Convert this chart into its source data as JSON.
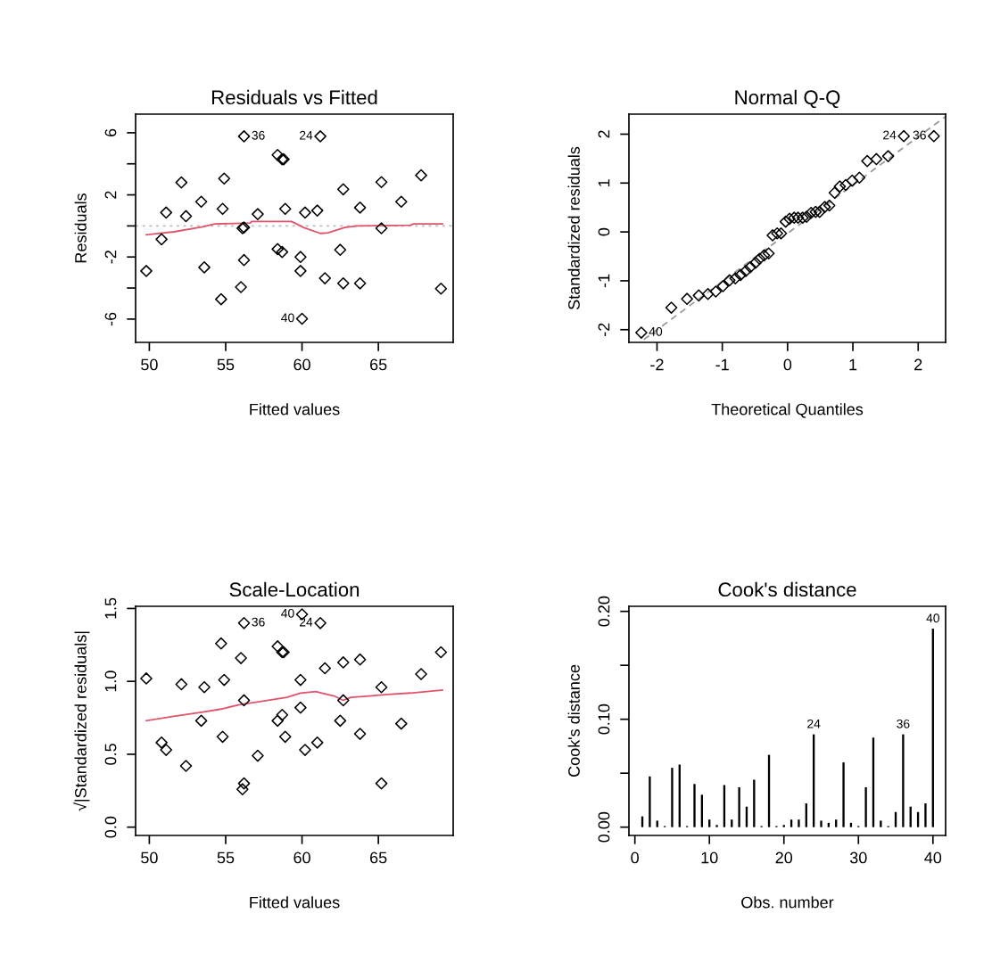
{
  "chart_data": [
    {
      "type": "scatter",
      "title": "Residuals vs Fitted",
      "xlabel": "Fitted values",
      "ylabel": "Residuals",
      "grid": false,
      "xlim": [
        49.1,
        69.9
      ],
      "ylim": [
        -7.5,
        7.2
      ],
      "xticks": [
        50,
        55,
        60,
        65
      ],
      "yticks": [
        -6,
        {
          "value": -4,
          "label": null
        },
        -2,
        {
          "value": 0,
          "label": null
        },
        2,
        {
          "value": 4,
          "label": null
        },
        6
      ],
      "ref_lines": [
        {
          "axis": "y",
          "value": 0,
          "color": "#bebebe",
          "line_style": "dotted"
        }
      ],
      "series": [
        {
          "type": "scatter",
          "color": "#000000",
          "marker": "diamond",
          "x": [
            49.8,
            50.8,
            51.1,
            52.1,
            52.4,
            53.4,
            53.6,
            54.7,
            54.8,
            54.9,
            56.0,
            56.1,
            56.2,
            56.2,
            56.2,
            57.1,
            58.4,
            58.7,
            58.8,
            58.4,
            58.7,
            58.9,
            59.9,
            59.9,
            60.0,
            60.2,
            61.0,
            61.2,
            61.5,
            62.5,
            62.7,
            62.7,
            63.8,
            63.8,
            65.2,
            65.2,
            66.5,
            67.8,
            69.1
          ],
          "values": [
            -2.9,
            -0.86,
            0.86,
            2.8,
            0.63,
            1.56,
            -2.67,
            -4.72,
            1.1,
            3.05,
            -3.94,
            -0.15,
            -0.1,
            -2.2,
            5.77,
            0.76,
            4.57,
            4.29,
            4.29,
            -1.49,
            -1.68,
            1.1,
            -2.0,
            -2.9,
            -5.98,
            0.86,
            0.99,
            5.77,
            -3.37,
            -1.54,
            2.36,
            -3.7,
            1.18,
            -3.7,
            2.82,
            -0.15,
            1.56,
            3.26,
            -4.04
          ]
        },
        {
          "type": "line",
          "color": "#df536b",
          "x": [
            49.8,
            51.6,
            53.5,
            54.3,
            56.6,
            56.7,
            59.3,
            59.7,
            60.1,
            61.2,
            61.7,
            62.8,
            63.6,
            67.1,
            67.3,
            69.2
          ],
          "values": [
            -0.57,
            -0.38,
            -0.06,
            0.13,
            0.19,
            0.29,
            0.29,
            0.1,
            -0.1,
            -0.48,
            -0.44,
            -0.1,
            0.0,
            0.04,
            0.13,
            0.13
          ]
        }
      ],
      "annotations": [
        {
          "text": "36",
          "x": 56.2,
          "y": 5.77
        },
        {
          "text": "24",
          "x": 61.2,
          "y": 5.77
        },
        {
          "text": "40",
          "x": 60.0,
          "y": -5.98
        }
      ]
    },
    {
      "type": "scatter",
      "title": "Normal Q-Q",
      "xlabel": "Theoretical Quantiles",
      "ylabel": "Standardized residuals",
      "grid": false,
      "xlim": [
        -2.43,
        2.42
      ],
      "ylim": [
        -2.26,
        2.41
      ],
      "xticks": [
        -2,
        -1,
        0,
        1,
        2
      ],
      "yticks": [
        -2,
        -1,
        0,
        1,
        2
      ],
      "series": [
        {
          "type": "scatter",
          "color": "#000000",
          "marker": "diamond",
          "x": [
            -2.24,
            -1.78,
            -1.54,
            -1.36,
            -1.22,
            -1.1,
            -0.99,
            -0.89,
            -0.8,
            -0.72,
            -0.64,
            -0.57,
            -0.49,
            -0.43,
            -0.36,
            -0.29,
            -0.23,
            -0.16,
            -0.1,
            -0.03,
            0.03,
            0.1,
            0.16,
            0.23,
            0.29,
            0.36,
            0.43,
            0.49,
            0.57,
            0.64,
            0.72,
            0.8,
            0.89,
            0.99,
            1.1,
            1.22,
            1.36,
            1.54,
            1.78,
            2.24
          ],
          "values": [
            -2.06,
            -1.55,
            -1.37,
            -1.3,
            -1.27,
            -1.22,
            -1.11,
            -0.99,
            -0.95,
            -0.88,
            -0.8,
            -0.72,
            -0.63,
            -0.55,
            -0.48,
            -0.44,
            -0.07,
            -0.03,
            -0.03,
            0.21,
            0.27,
            0.29,
            0.29,
            0.29,
            0.31,
            0.39,
            0.41,
            0.41,
            0.51,
            0.54,
            0.8,
            0.93,
            0.96,
            1.05,
            1.11,
            1.45,
            1.49,
            1.55,
            1.96,
            1.96
          ]
        },
        {
          "type": "line",
          "color": "#999999",
          "line_style": "dashed",
          "x": [
            -2.2,
            2.42
          ],
          "values": [
            -2.2,
            2.36
          ]
        }
      ],
      "annotations": [
        {
          "text": "40",
          "x": -2.24,
          "y": -2.06
        },
        {
          "text": "24",
          "x": 1.78,
          "y": 1.96
        },
        {
          "text": "36",
          "x": 2.24,
          "y": 1.96
        }
      ]
    },
    {
      "type": "scatter",
      "title": "Scale-Location",
      "xlabel": "Fitted values",
      "ylabel": "√|Standardized residuals|",
      "grid": false,
      "xlim": [
        49.1,
        69.9
      ],
      "ylim": [
        -0.057,
        1.515
      ],
      "xticks": [
        50,
        55,
        60,
        65
      ],
      "yticks": [
        {
          "value": 0,
          "label": "0.0"
        },
        {
          "value": 0.5,
          "label": "0.5"
        },
        {
          "value": 1,
          "label": "1.0"
        },
        {
          "value": 1.5,
          "label": "1.5"
        }
      ],
      "series": [
        {
          "type": "scatter",
          "color": "#000000",
          "marker": "diamond",
          "x": [
            49.8,
            50.8,
            51.1,
            52.1,
            52.4,
            53.4,
            53.6,
            54.7,
            54.8,
            54.9,
            56.0,
            56.1,
            56.2,
            56.2,
            56.2,
            57.1,
            58.4,
            58.7,
            58.8,
            58.4,
            58.7,
            58.9,
            59.9,
            59.9,
            60.0,
            60.2,
            61.0,
            61.2,
            61.5,
            62.5,
            62.7,
            62.7,
            63.8,
            63.8,
            65.2,
            65.2,
            66.5,
            67.8,
            69.1
          ],
          "values": [
            1.02,
            0.58,
            0.53,
            0.98,
            0.42,
            0.73,
            0.96,
            1.26,
            0.62,
            1.01,
            1.16,
            0.26,
            0.3,
            0.87,
            1.4,
            0.49,
            1.24,
            1.2,
            1.2,
            0.73,
            0.77,
            0.62,
            1.01,
            0.82,
            1.46,
            0.53,
            0.58,
            1.4,
            1.09,
            0.73,
            1.13,
            0.87,
            1.15,
            0.64,
            0.96,
            0.3,
            0.71,
            1.05,
            1.2
          ]
        },
        {
          "type": "line",
          "color": "#df536b",
          "x": [
            49.8,
            51.6,
            53.5,
            54.7,
            55.9,
            57.8,
            59.0,
            59.9,
            60.9,
            61.3,
            62.1,
            62.7,
            63.2,
            64.4,
            65.6,
            67.1,
            69.2
          ],
          "values": [
            0.73,
            0.76,
            0.79,
            0.81,
            0.84,
            0.87,
            0.89,
            0.92,
            0.93,
            0.92,
            0.9,
            0.87,
            0.89,
            0.9,
            0.91,
            0.92,
            0.94
          ]
        }
      ],
      "annotations": [
        {
          "text": "36",
          "x": 56.2,
          "y": 1.4
        },
        {
          "text": "40",
          "x": 60.0,
          "y": 1.46
        },
        {
          "text": "24",
          "x": 61.2,
          "y": 1.4
        }
      ]
    },
    {
      "type": "bar",
      "title": "Cook's distance",
      "xlabel": "Obs. number",
      "ylabel": "Cook's distance",
      "grid": false,
      "xlim": [
        -0.8,
        41.7
      ],
      "ylim": [
        -0.0077,
        0.2047
      ],
      "xticks": [
        0,
        10,
        20,
        30,
        40
      ],
      "yticks": [
        {
          "value": 0,
          "label": "0.00"
        },
        {
          "value": 0.05,
          "label": null
        },
        {
          "value": 0.1,
          "label": "0.10"
        },
        {
          "value": 0.15,
          "label": null
        },
        {
          "value": 0.2,
          "label": "0.20"
        }
      ],
      "series": [
        {
          "type": "bar",
          "color": "#000000",
          "x": [
            1,
            2,
            3,
            4,
            5,
            6,
            7,
            8,
            9,
            10,
            11,
            12,
            13,
            14,
            15,
            16,
            17,
            18,
            19,
            20,
            21,
            22,
            23,
            24,
            25,
            26,
            27,
            28,
            29,
            30,
            31,
            32,
            33,
            34,
            35,
            36,
            37,
            38,
            39,
            40
          ],
          "values": [
            0.01,
            0.047,
            0.006,
            0.001,
            0.055,
            0.058,
            0.001,
            0.04,
            0.03,
            0.007,
            0.002,
            0.039,
            0.007,
            0.037,
            0.019,
            0.044,
            0.001,
            0.067,
            0.001,
            0.002,
            0.007,
            0.007,
            0.022,
            0.086,
            0.006,
            0.004,
            0.007,
            0.06,
            0.004,
            0.001,
            0.037,
            0.083,
            0.006,
            0.001,
            0.014,
            0.086,
            0.019,
            0.014,
            0.022,
            0.184
          ]
        }
      ],
      "annotations": [
        {
          "text": "24",
          "x": 24,
          "y": 0.086
        },
        {
          "text": "36",
          "x": 36,
          "y": 0.086
        },
        {
          "text": "40",
          "x": 40,
          "y": 0.184
        }
      ]
    }
  ]
}
